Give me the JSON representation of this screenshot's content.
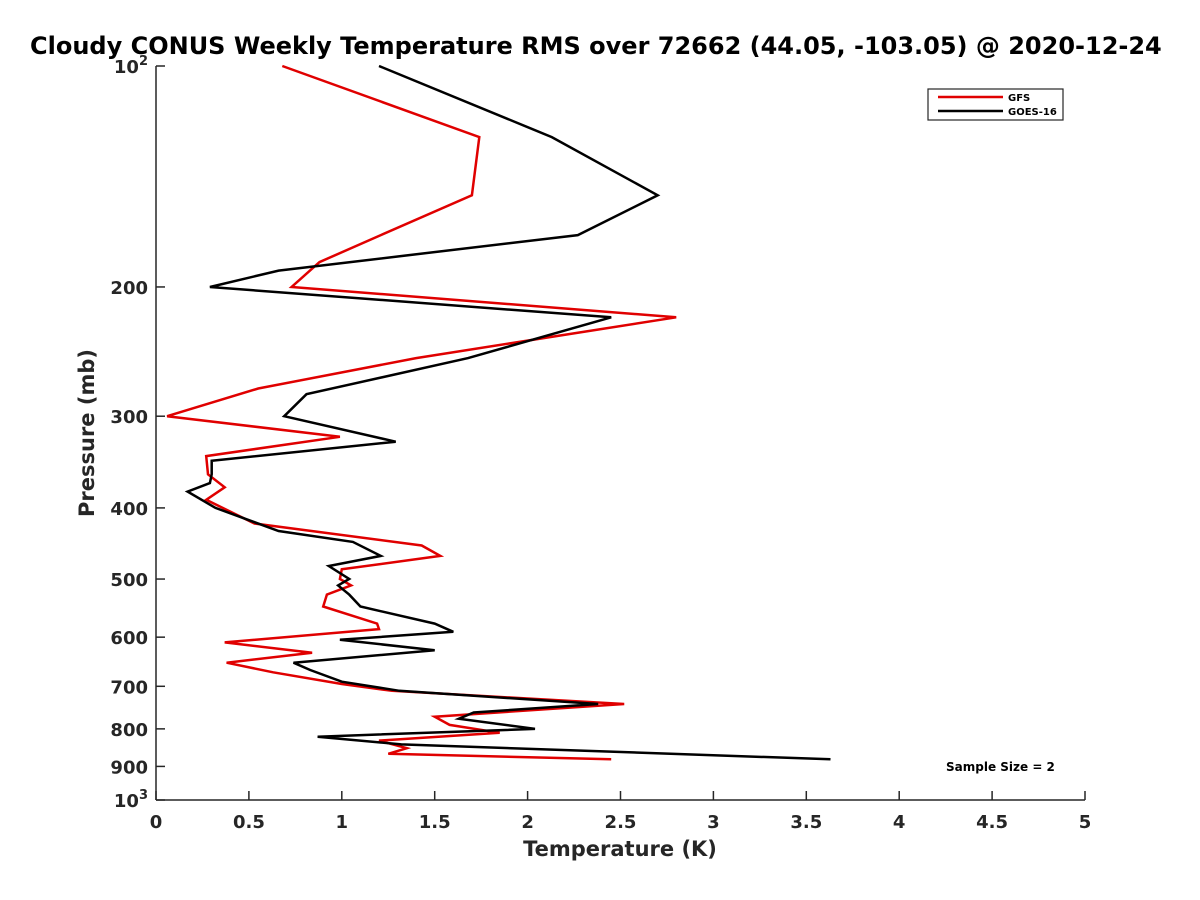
{
  "chart_data": {
    "type": "line",
    "title": "Cloudy CONUS Weekly Temperature RMS over 72662 (44.05, -103.05) @ 2020-12-24",
    "xlabel": "Temperature (K)",
    "ylabel": "Pressure (mb)",
    "xlim": [
      0,
      5
    ],
    "ylim": [
      100,
      1000
    ],
    "y_scale": "log",
    "y_reversed": true,
    "grid": false,
    "legend_position": "top-right",
    "x_ticks": [
      "0",
      "0.5",
      "1",
      "1.5",
      "2",
      "2.5",
      "3",
      "3.5",
      "4",
      "4.5",
      "5"
    ],
    "y_ticks": [
      {
        "value": 100,
        "base": "10",
        "exp": "2"
      },
      {
        "value": 200,
        "label": "200"
      },
      {
        "value": 300,
        "label": "300"
      },
      {
        "value": 400,
        "label": "400"
      },
      {
        "value": 500,
        "label": "500"
      },
      {
        "value": 600,
        "label": "600"
      },
      {
        "value": 700,
        "label": "700"
      },
      {
        "value": 800,
        "label": "800"
      },
      {
        "value": 900,
        "label": "900"
      },
      {
        "value": 1000,
        "base": "10",
        "exp": "3"
      }
    ],
    "series": [
      {
        "name": "GFS",
        "color": "#e00000",
        "points": [
          [
            0.68,
            100
          ],
          [
            1.74,
            125
          ],
          [
            1.7,
            150
          ],
          [
            1.21,
            170
          ],
          [
            0.88,
            185
          ],
          [
            0.73,
            200
          ],
          [
            2.8,
            220
          ],
          [
            1.4,
            250
          ],
          [
            0.55,
            275
          ],
          [
            0.06,
            300
          ],
          [
            0.99,
            320
          ],
          [
            0.27,
            340
          ],
          [
            0.28,
            360
          ],
          [
            0.37,
            375
          ],
          [
            0.27,
            390
          ],
          [
            0.53,
            420
          ],
          [
            1.43,
            450
          ],
          [
            1.53,
            465
          ],
          [
            1.0,
            485
          ],
          [
            0.99,
            500
          ],
          [
            1.05,
            510
          ],
          [
            0.92,
            525
          ],
          [
            0.9,
            545
          ],
          [
            1.19,
            575
          ],
          [
            1.2,
            585
          ],
          [
            0.37,
            610
          ],
          [
            0.84,
            630
          ],
          [
            0.38,
            650
          ],
          [
            0.63,
            670
          ],
          [
            1.0,
            695
          ],
          [
            1.27,
            710
          ],
          [
            2.52,
            740
          ],
          [
            1.5,
            770
          ],
          [
            1.58,
            790
          ],
          [
            1.85,
            810
          ],
          [
            1.2,
            830
          ],
          [
            1.35,
            850
          ],
          [
            1.25,
            865
          ],
          [
            2.45,
            880
          ]
        ]
      },
      {
        "name": "GOES-16",
        "color": "#000000",
        "points": [
          [
            1.2,
            100
          ],
          [
            2.13,
            125
          ],
          [
            2.7,
            150
          ],
          [
            2.27,
            170
          ],
          [
            0.66,
            190
          ],
          [
            0.29,
            200
          ],
          [
            2.45,
            220
          ],
          [
            1.68,
            250
          ],
          [
            0.81,
            280
          ],
          [
            0.69,
            300
          ],
          [
            1.29,
            325
          ],
          [
            0.3,
            345
          ],
          [
            0.3,
            360
          ],
          [
            0.29,
            370
          ],
          [
            0.17,
            380
          ],
          [
            0.32,
            400
          ],
          [
            0.66,
            430
          ],
          [
            1.06,
            445
          ],
          [
            1.21,
            465
          ],
          [
            0.93,
            480
          ],
          [
            1.04,
            500
          ],
          [
            0.98,
            510
          ],
          [
            1.04,
            525
          ],
          [
            1.1,
            545
          ],
          [
            1.5,
            575
          ],
          [
            1.6,
            590
          ],
          [
            0.99,
            605
          ],
          [
            1.5,
            625
          ],
          [
            0.74,
            650
          ],
          [
            0.83,
            665
          ],
          [
            1.0,
            690
          ],
          [
            1.31,
            710
          ],
          [
            2.38,
            740
          ],
          [
            1.71,
            760
          ],
          [
            1.63,
            775
          ],
          [
            2.04,
            800
          ],
          [
            0.87,
            820
          ],
          [
            1.32,
            840
          ],
          [
            3.63,
            880
          ]
        ]
      }
    ],
    "annotation": "Sample Size = 2"
  }
}
